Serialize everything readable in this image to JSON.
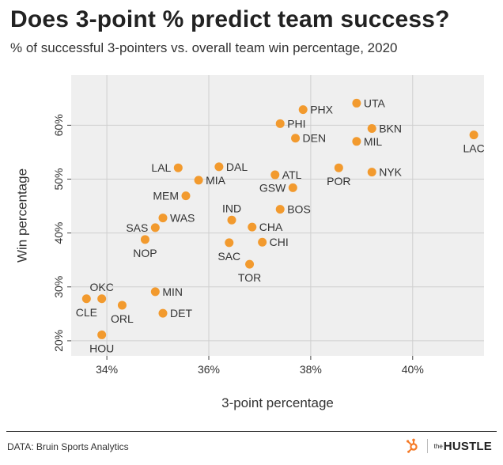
{
  "title": "Does 3-point % predict team success?",
  "subtitle": "% of successful 3-pointers vs. overall team win percentage, 2020",
  "footer": {
    "source": "DATA: Bruin Sports Analytics",
    "brand_the": "the",
    "brand_name": "HUSTLE"
  },
  "colors": {
    "point": "#f29a2e",
    "plot_background": "#efefef",
    "grid": "#cfcfcf",
    "brand_icon": "#f57b28"
  },
  "chart_data": {
    "type": "scatter",
    "xlabel": "3-point percentage",
    "ylabel": "Win percentage",
    "xlim": [
      33.3,
      41.4
    ],
    "ylim": [
      17.2,
      69.3
    ],
    "xticks": [
      34,
      36,
      38,
      40
    ],
    "xtick_labels": [
      "34%",
      "36%",
      "38%",
      "40%"
    ],
    "yticks": [
      20,
      30,
      40,
      50,
      60
    ],
    "ytick_labels": [
      "20%",
      "30%",
      "40%",
      "50%",
      "60%"
    ],
    "grid": true,
    "points": [
      {
        "label": "PHX",
        "x": 37.85,
        "y": 62.9,
        "label_pos": "right"
      },
      {
        "label": "UTA",
        "x": 38.9,
        "y": 64.1,
        "label_pos": "right"
      },
      {
        "label": "PHI",
        "x": 37.4,
        "y": 60.3,
        "label_pos": "right"
      },
      {
        "label": "BKN",
        "x": 39.2,
        "y": 59.4,
        "label_pos": "right"
      },
      {
        "label": "DEN",
        "x": 37.7,
        "y": 57.6,
        "label_pos": "right"
      },
      {
        "label": "MIL",
        "x": 38.9,
        "y": 57.0,
        "label_pos": "right"
      },
      {
        "label": "LAC",
        "x": 41.2,
        "y": 58.2,
        "label_pos": "below"
      },
      {
        "label": "LAL",
        "x": 35.4,
        "y": 52.1,
        "label_pos": "left"
      },
      {
        "label": "DAL",
        "x": 36.2,
        "y": 52.3,
        "label_pos": "right"
      },
      {
        "label": "MIA",
        "x": 35.8,
        "y": 49.8,
        "label_pos": "right"
      },
      {
        "label": "POR",
        "x": 38.55,
        "y": 52.1,
        "label_pos": "below"
      },
      {
        "label": "NYK",
        "x": 39.2,
        "y": 51.3,
        "label_pos": "right"
      },
      {
        "label": "ATL",
        "x": 37.3,
        "y": 50.8,
        "label_pos": "right"
      },
      {
        "label": "GSW",
        "x": 37.65,
        "y": 48.4,
        "label_pos": "left"
      },
      {
        "label": "MEM",
        "x": 35.55,
        "y": 46.9,
        "label_pos": "left"
      },
      {
        "label": "IND",
        "x": 36.45,
        "y": 42.4,
        "label_pos": "above"
      },
      {
        "label": "BOS",
        "x": 37.4,
        "y": 44.4,
        "label_pos": "right"
      },
      {
        "label": "SAS",
        "x": 34.95,
        "y": 41.0,
        "label_pos": "left"
      },
      {
        "label": "WAS",
        "x": 35.1,
        "y": 42.8,
        "label_pos": "right"
      },
      {
        "label": "CHA",
        "x": 36.85,
        "y": 41.1,
        "label_pos": "right"
      },
      {
        "label": "NOP",
        "x": 34.75,
        "y": 38.8,
        "label_pos": "below"
      },
      {
        "label": "SAC",
        "x": 36.4,
        "y": 38.2,
        "label_pos": "below"
      },
      {
        "label": "CHI",
        "x": 37.05,
        "y": 38.3,
        "label_pos": "right"
      },
      {
        "label": "TOR",
        "x": 36.8,
        "y": 34.2,
        "label_pos": "below"
      },
      {
        "label": "OKC",
        "x": 33.9,
        "y": 27.8,
        "label_pos": "above"
      },
      {
        "label": "MIN",
        "x": 34.95,
        "y": 29.1,
        "label_pos": "right"
      },
      {
        "label": "CLE",
        "x": 33.6,
        "y": 27.8,
        "label_pos": "below"
      },
      {
        "label": "ORL",
        "x": 34.3,
        "y": 26.6,
        "label_pos": "below"
      },
      {
        "label": "DET",
        "x": 35.1,
        "y": 25.1,
        "label_pos": "right"
      },
      {
        "label": "HOU",
        "x": 33.9,
        "y": 21.1,
        "label_pos": "below"
      }
    ]
  }
}
